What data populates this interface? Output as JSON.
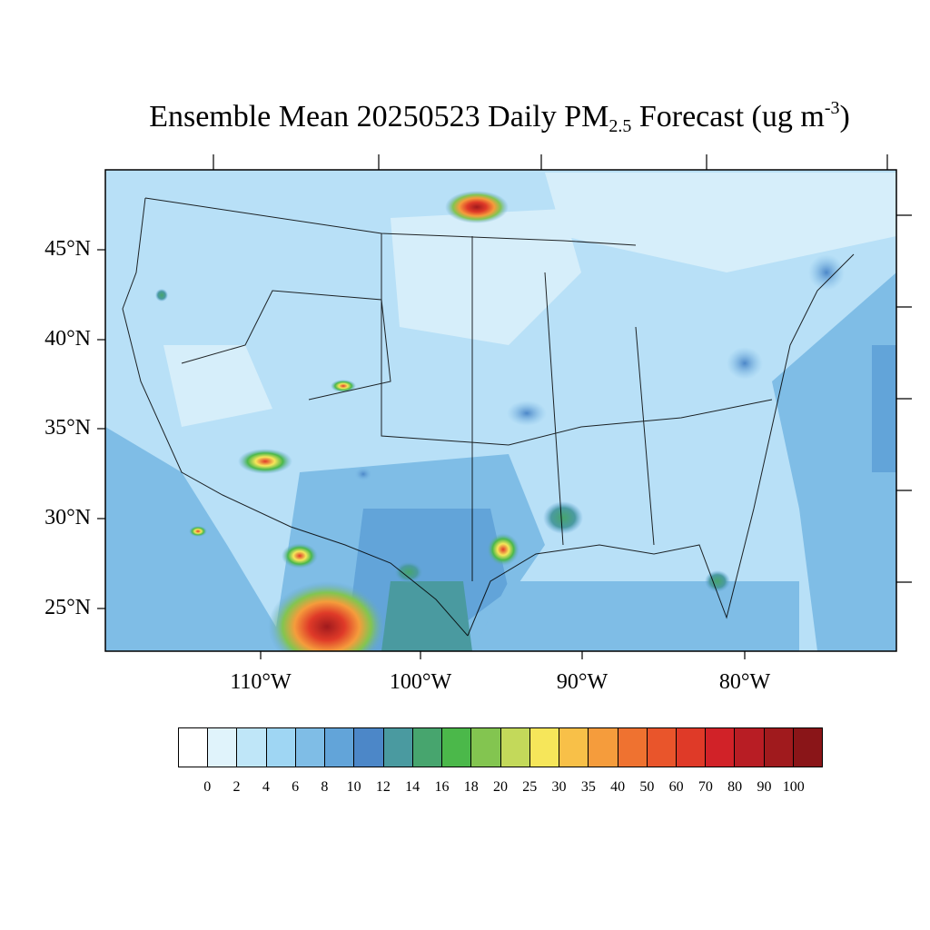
{
  "title": {
    "prefix": "Ensemble Mean 20250523 Daily PM",
    "subscript": "2.5",
    "middle": " Forecast (ug m",
    "superscript": "-3",
    "suffix": ")"
  },
  "map": {
    "lat_labels": [
      "45°N",
      "40°N",
      "35°N",
      "30°N",
      "25°N"
    ],
    "lon_labels": [
      "110°W",
      "100°W",
      "90°W",
      "80°W"
    ],
    "background_color": "#b8e0f7"
  },
  "colorbar": {
    "levels": [
      "0",
      "2",
      "4",
      "6",
      "8",
      "10",
      "12",
      "14",
      "16",
      "18",
      "20",
      "25",
      "30",
      "35",
      "40",
      "50",
      "60",
      "70",
      "80",
      "90",
      "100"
    ],
    "colors": [
      "#ffffff",
      "#e0f3fb",
      "#bfe6f8",
      "#9fd6f3",
      "#7fbde6",
      "#62a4d9",
      "#4c87c8",
      "#4a9aa0",
      "#47a56e",
      "#4bb84a",
      "#83c550",
      "#c3d95a",
      "#f6e65a",
      "#f8c048",
      "#f59c3c",
      "#ef7230",
      "#e9552b",
      "#df3a28",
      "#d12228",
      "#b81d24",
      "#a01a1d",
      "#8a1518"
    ]
  }
}
